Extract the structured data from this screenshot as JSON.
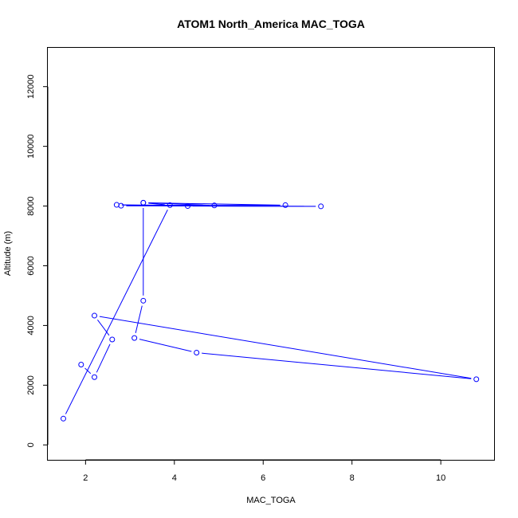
{
  "chart_data": {
    "type": "line",
    "title": "ATOM1 North_America MAC_TOGA",
    "xlabel": "MAC_TOGA",
    "ylabel": "Altitude (m)",
    "xlim": [
      1.15,
      11.2
    ],
    "ylim": [
      -500,
      13300
    ],
    "xticks": [
      2,
      4,
      6,
      8,
      10
    ],
    "yticks": [
      0,
      2000,
      4000,
      6000,
      8000,
      10000,
      12000
    ],
    "grid": false,
    "legend": "none",
    "color": "#0000ff",
    "marker": "open-circle",
    "series": [
      {
        "x": [
          1.5,
          3.9,
          3.3,
          6.5,
          2.8,
          7.3,
          4.3,
          2.7,
          4.9,
          3.3,
          3.3,
          3.1,
          4.5,
          10.8,
          2.2,
          2.6,
          2.2,
          1.9
        ],
        "y": [
          880,
          8030,
          8110,
          8030,
          8010,
          7990,
          8000,
          8040,
          8020,
          8110,
          4830,
          3580,
          3090,
          2200,
          4330,
          3530,
          2270,
          2690
        ]
      }
    ]
  }
}
